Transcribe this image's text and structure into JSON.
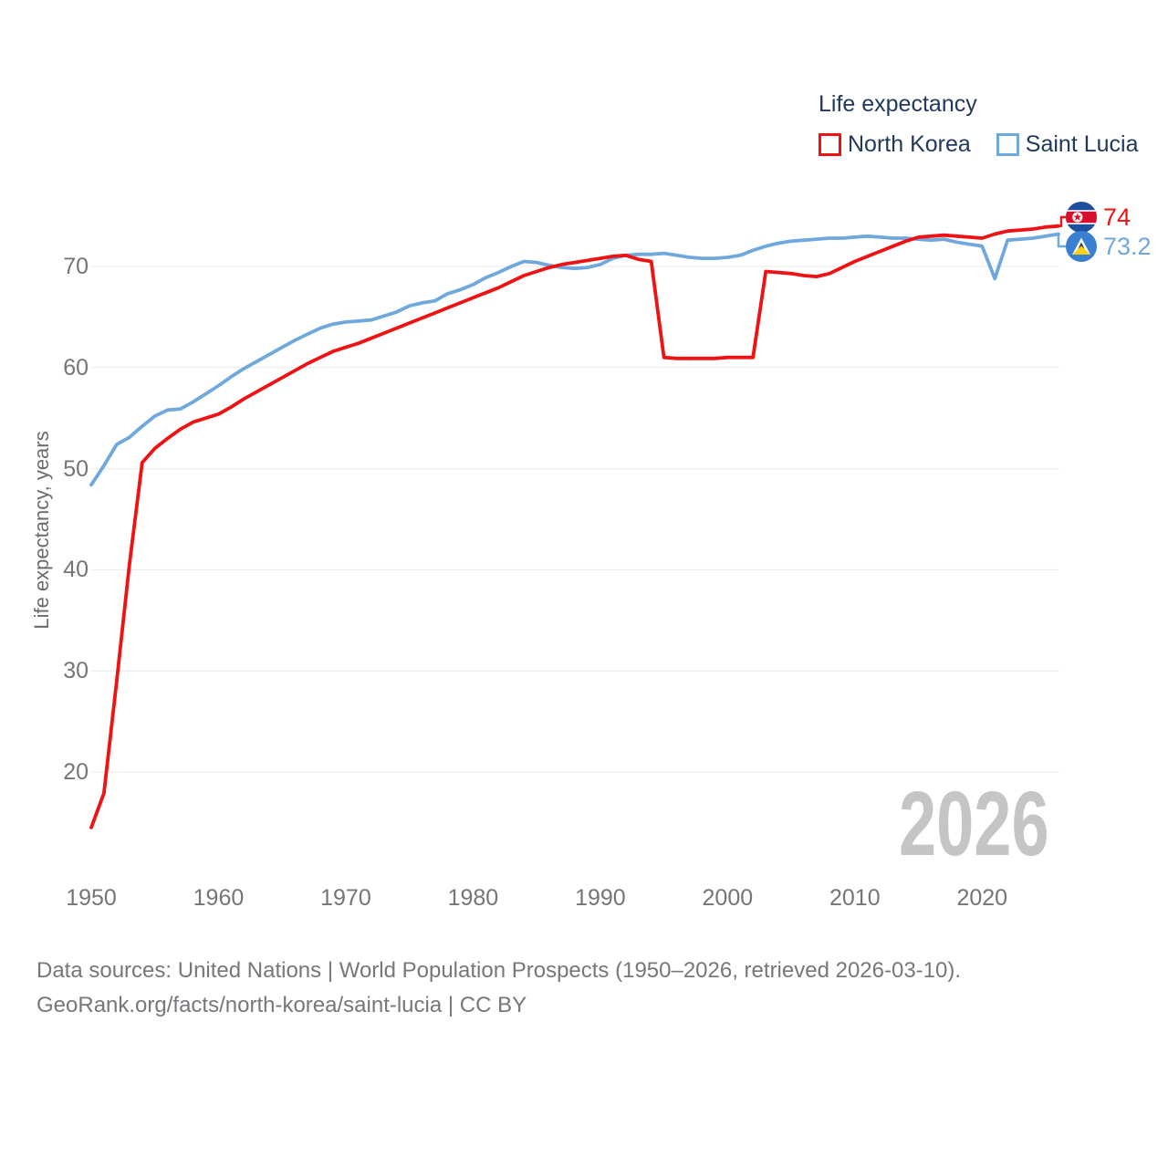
{
  "legend": {
    "title": "Life expectancy",
    "entries": [
      {
        "label": "North Korea",
        "color": "#f01112"
      },
      {
        "label": "Saint Lucia",
        "color": "#6fa8dc"
      }
    ]
  },
  "axes": {
    "y_label": "Life expectancy, years"
  },
  "end_labels": [
    {
      "series": "North Korea",
      "value": "74",
      "color": "#f01112",
      "flag": "north-korea-flag"
    },
    {
      "series": "Saint Lucia",
      "value": "73.2",
      "color": "#6fa8dc",
      "flag": "saint-lucia-flag"
    }
  ],
  "watermark": "2026",
  "footer": {
    "line1": "Data sources: United Nations | World Population Prospects (1950–2026, retrieved 2026-03-10).",
    "line2": "GeoRank.org/facts/north-korea/saint-lucia | CC BY"
  },
  "chart_data": {
    "type": "line",
    "title": "Life expectancy",
    "xlabel": "",
    "ylabel": "Life expectancy, years",
    "xlim": [
      1950,
      2026
    ],
    "ylim": [
      13,
      75
    ],
    "x_ticks": [
      1950,
      1960,
      1970,
      1980,
      1990,
      2000,
      2010,
      2020
    ],
    "y_ticks": [
      20,
      30,
      40,
      50,
      60,
      70
    ],
    "grid": "horizontal",
    "legend_position": "top-right",
    "x": [
      1950,
      1951,
      1952,
      1953,
      1954,
      1955,
      1956,
      1957,
      1958,
      1959,
      1960,
      1961,
      1962,
      1963,
      1964,
      1965,
      1966,
      1967,
      1968,
      1969,
      1970,
      1971,
      1972,
      1973,
      1974,
      1975,
      1976,
      1977,
      1978,
      1979,
      1980,
      1981,
      1982,
      1983,
      1984,
      1985,
      1986,
      1987,
      1988,
      1989,
      1990,
      1991,
      1992,
      1993,
      1994,
      1995,
      1996,
      1997,
      1998,
      1999,
      2000,
      2001,
      2002,
      2003,
      2004,
      2005,
      2006,
      2007,
      2008,
      2009,
      2010,
      2011,
      2012,
      2013,
      2014,
      2015,
      2016,
      2017,
      2018,
      2019,
      2020,
      2021,
      2022,
      2023,
      2024,
      2025,
      2026
    ],
    "series": [
      {
        "name": "North Korea",
        "color": "#f01112",
        "end_label": "74",
        "values": [
          14.5,
          17.9,
          29.0,
          40.5,
          50.6,
          52.0,
          53.0,
          53.9,
          54.6,
          55.0,
          55.4,
          56.1,
          56.9,
          57.6,
          58.3,
          59.0,
          59.7,
          60.4,
          61.0,
          61.6,
          62.0,
          62.4,
          62.9,
          63.4,
          63.9,
          64.4,
          64.9,
          65.4,
          65.9,
          66.4,
          66.9,
          67.4,
          67.9,
          68.5,
          69.1,
          69.5,
          69.9,
          70.2,
          70.4,
          70.6,
          70.8,
          71.0,
          71.1,
          70.7,
          70.5,
          61.0,
          60.9,
          60.9,
          60.9,
          60.9,
          61.0,
          61.0,
          61.0,
          69.5,
          69.4,
          69.3,
          69.1,
          69.0,
          69.3,
          69.9,
          70.5,
          71.0,
          71.5,
          72.0,
          72.5,
          72.9,
          73.0,
          73.1,
          73.0,
          72.9,
          72.8,
          73.2,
          73.5,
          73.6,
          73.7,
          73.9,
          74.0
        ]
      },
      {
        "name": "Saint Lucia",
        "color": "#6fa8dc",
        "end_label": "73.2",
        "values": [
          48.4,
          50.3,
          52.4,
          53.1,
          54.2,
          55.2,
          55.8,
          55.9,
          56.6,
          57.4,
          58.2,
          59.1,
          59.9,
          60.6,
          61.3,
          62.0,
          62.7,
          63.3,
          63.9,
          64.3,
          64.5,
          64.6,
          64.7,
          65.1,
          65.5,
          66.1,
          66.4,
          66.6,
          67.3,
          67.7,
          68.2,
          68.9,
          69.4,
          70.0,
          70.5,
          70.4,
          70.1,
          69.9,
          69.8,
          69.9,
          70.2,
          70.8,
          71.1,
          71.2,
          71.2,
          71.3,
          71.1,
          70.9,
          70.8,
          70.8,
          70.9,
          71.1,
          71.6,
          72.0,
          72.3,
          72.5,
          72.6,
          72.7,
          72.8,
          72.8,
          72.9,
          73.0,
          72.9,
          72.8,
          72.8,
          72.7,
          72.6,
          72.7,
          72.4,
          72.2,
          72.0,
          68.8,
          72.6,
          72.7,
          72.8,
          73.0,
          73.2
        ]
      }
    ]
  }
}
